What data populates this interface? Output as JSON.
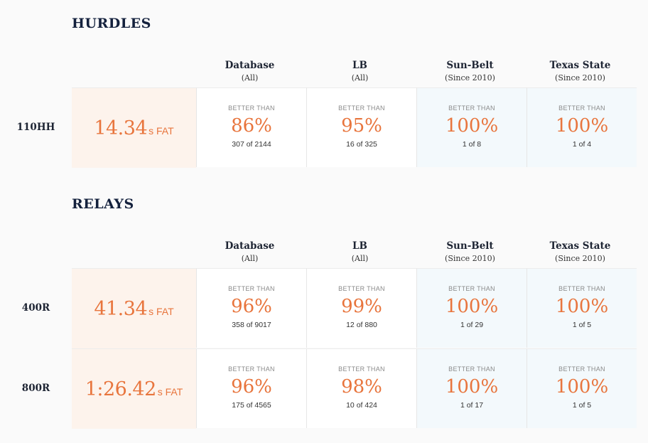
{
  "columns": [
    {
      "name": "Database",
      "sub": "(All)"
    },
    {
      "name": "LB",
      "sub": "(All)"
    },
    {
      "name": "Sun-Belt",
      "sub": "(Since 2010)"
    },
    {
      "name": "Texas State",
      "sub": "(Since 2010)"
    }
  ],
  "better_than_label": "BETTER THAN",
  "sections": [
    {
      "title": "HURDLES",
      "rows": [
        {
          "event": "110HH",
          "time": "14.34",
          "unit": "s FAT",
          "stats": [
            {
              "pct": "86%",
              "count": "307 of 2144"
            },
            {
              "pct": "95%",
              "count": "16 of 325"
            },
            {
              "pct": "100%",
              "count": "1 of 8"
            },
            {
              "pct": "100%",
              "count": "1 of 4"
            }
          ]
        }
      ]
    },
    {
      "title": "RELAYS",
      "rows": [
        {
          "event": "400R",
          "time": "41.34",
          "unit": "s FAT",
          "stats": [
            {
              "pct": "96%",
              "count": "358 of 9017"
            },
            {
              "pct": "99%",
              "count": "12 of 880"
            },
            {
              "pct": "100%",
              "count": "1 of 29"
            },
            {
              "pct": "100%",
              "count": "1 of 5"
            }
          ]
        },
        {
          "event": "800R",
          "time": "1:26.42",
          "unit": "s FAT",
          "stats": [
            {
              "pct": "96%",
              "count": "175 of 4565"
            },
            {
              "pct": "98%",
              "count": "10 of 424"
            },
            {
              "pct": "100%",
              "count": "1 of 17"
            },
            {
              "pct": "100%",
              "count": "1 of 5"
            }
          ]
        }
      ]
    }
  ],
  "colors": {
    "accent": "#e8753d",
    "time_bg": "#fdf3ec",
    "conf_bg": "#f3f9fc"
  }
}
